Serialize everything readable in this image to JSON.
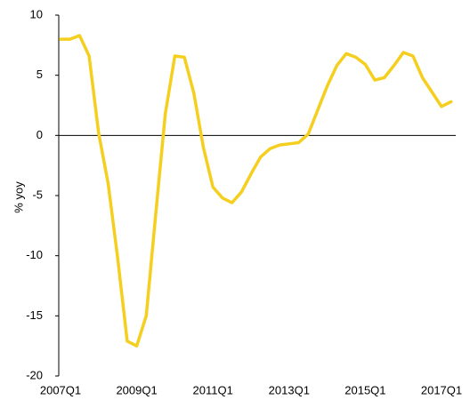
{
  "chart_data": {
    "type": "line",
    "y_label": "% yoy",
    "categories": [
      "2007Q1",
      null,
      null,
      null,
      null,
      null,
      null,
      null,
      "2009Q1",
      null,
      null,
      null,
      null,
      null,
      null,
      null,
      "2011Q1",
      null,
      null,
      null,
      null,
      null,
      null,
      null,
      "2013Q1",
      null,
      null,
      null,
      null,
      null,
      null,
      null,
      "2015Q1",
      null,
      null,
      null,
      null,
      null,
      null,
      null,
      "2017Q1",
      null
    ],
    "values": [
      8.0,
      8.0,
      8.3,
      6.6,
      0.2,
      -4.0,
      -10.2,
      -17.1,
      -17.5,
      -15.0,
      -6.5,
      1.8,
      6.6,
      6.5,
      3.5,
      -1.0,
      -4.3,
      -5.2,
      -5.6,
      -4.7,
      -3.2,
      -1.8,
      -1.1,
      -0.8,
      -0.7,
      -0.6,
      0.1,
      2.1,
      4.1,
      5.8,
      6.8,
      6.5,
      5.9,
      4.6,
      4.8,
      5.8,
      6.9,
      6.6,
      4.8,
      3.6,
      2.4,
      2.8
    ],
    "color": "#f5cf1f",
    "ylim": [
      -20,
      10
    ],
    "yticks": [
      -20,
      -15,
      -10,
      -5,
      0,
      5,
      10
    ]
  }
}
